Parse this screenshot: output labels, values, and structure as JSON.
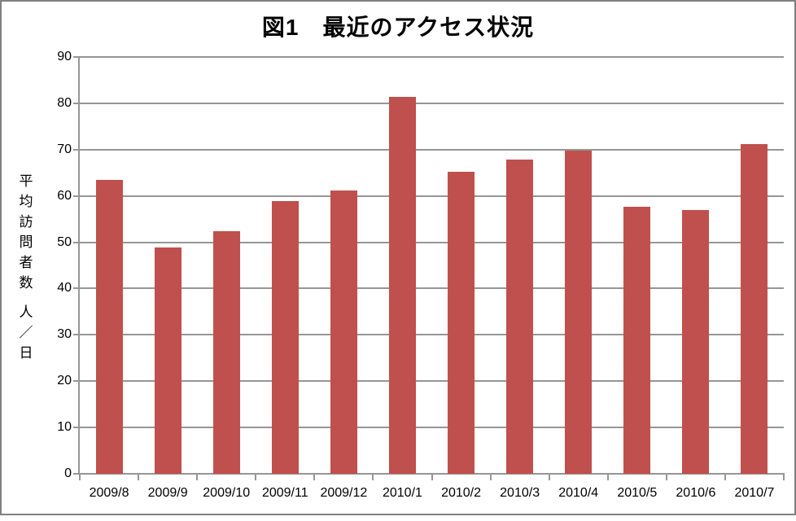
{
  "chart_data": {
    "type": "bar",
    "title": "図1　最近のアクセス状況",
    "categories": [
      "2009/8",
      "2009/9",
      "2009/10",
      "2009/11",
      "2009/12",
      "2010/1",
      "2010/2",
      "2010/3",
      "2010/4",
      "2010/5",
      "2010/6",
      "2010/7"
    ],
    "values": [
      63.5,
      48.9,
      52.4,
      58.9,
      61.1,
      81.3,
      65.2,
      67.8,
      69.8,
      57.6,
      56.9,
      71.2
    ],
    "ylabel_main": "平均訪問者数",
    "ylabel_unit": "人／日",
    "ylim": [
      0,
      90
    ],
    "ytick_step": 10,
    "ytick_labels": [
      "0",
      "10",
      "20",
      "30",
      "40",
      "50",
      "60",
      "70",
      "80",
      "90"
    ],
    "grid": true,
    "legend": "none",
    "colors": {
      "bar": "#C0504D",
      "gridline": "#969696",
      "axis": "#969696",
      "frame_border": "#808080",
      "text": "#000000",
      "background": "#FFFFFF"
    }
  }
}
